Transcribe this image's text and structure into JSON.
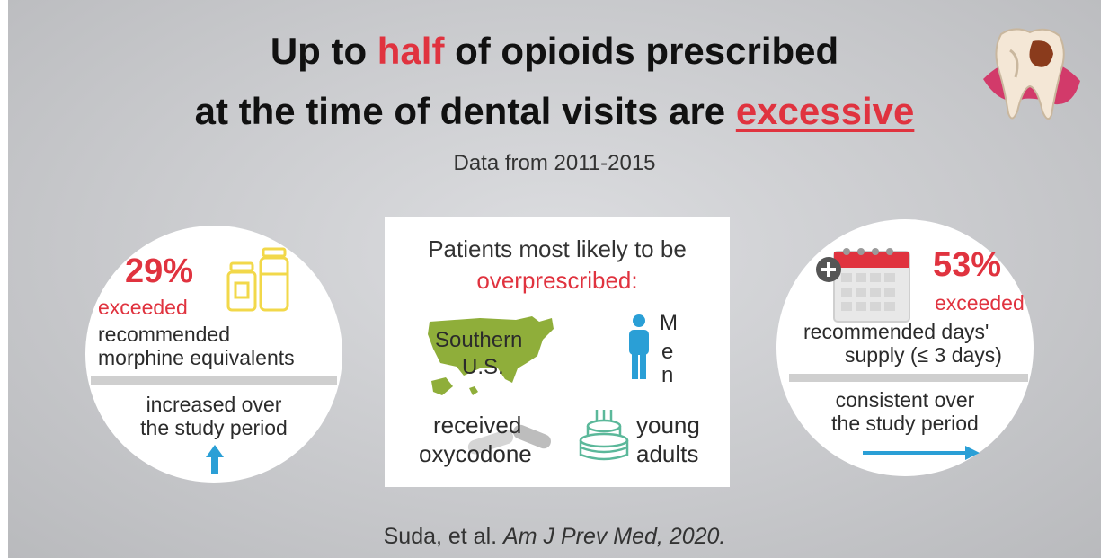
{
  "title": {
    "line1_pre": "Up to ",
    "line1_red": "half",
    "line1_post": " of opioids prescribed",
    "line2_pre": "at the time of dental visits are ",
    "line2_red": "excessive"
  },
  "subtitle": "Data from 2011-2015",
  "left_stat": {
    "percent": "29%",
    "label_red": "exceeded",
    "desc_line1": "recommended",
    "desc_line2": "morphine equivalents",
    "trend_line1": "increased over",
    "trend_line2": "the study period"
  },
  "center": {
    "heading": "Patients most likely to be",
    "heading_red": "overprescribed:",
    "map_line1": "Southern",
    "map_line2": "U.S.",
    "men_letters": [
      "M",
      "e",
      "n"
    ],
    "oxy_line1": "received",
    "oxy_line2": "oxycodone",
    "young_line1": "young",
    "young_line2": "adults"
  },
  "right_stat": {
    "percent": "53%",
    "label_red": "exceeded",
    "desc_line1": "recommended days'",
    "desc_line2": "supply (≤ 3 days)",
    "trend_line1": "consistent over",
    "trend_line2": "the study period"
  },
  "citation": {
    "authors": "Suda, et al. ",
    "journal": "Am J Prev Med, 2020."
  },
  "colors": {
    "accent_red": "#e0333f",
    "map_green": "#8fae3a",
    "person_blue": "#2a9fd6",
    "pill_yellow": "#f2d84a",
    "cake_teal": "#5bb89a"
  },
  "icons": [
    "tooth-icon",
    "pill-bottles-icon",
    "up-arrow-icon",
    "us-map-icon",
    "man-icon",
    "pills-icon",
    "cake-icon",
    "calendar-icon",
    "right-arrow-icon"
  ]
}
